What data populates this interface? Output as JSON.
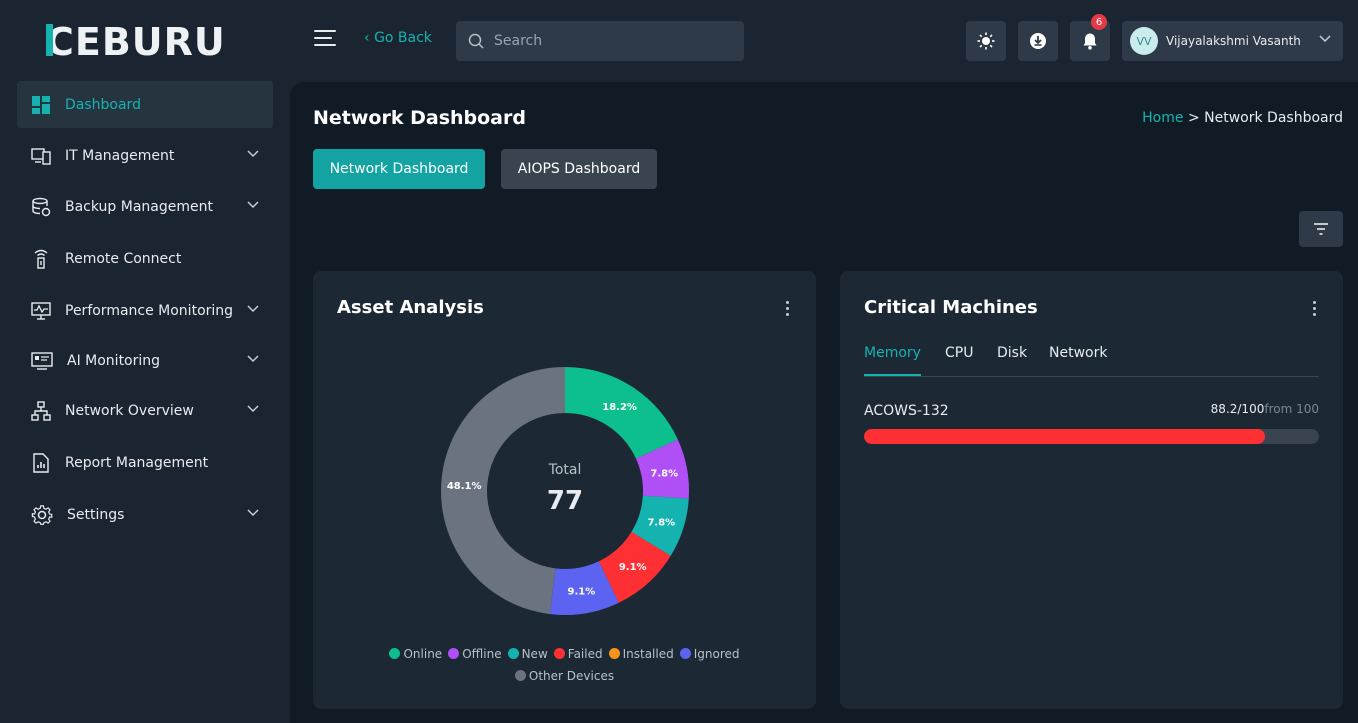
{
  "header": {
    "logo_text": "CEBURU",
    "go_back": "Go Back",
    "search_placeholder": "Search",
    "notification_count": "6",
    "user_initials": "VV",
    "user_name": "Vijayalakshmi Vasanth"
  },
  "sidebar": {
    "items": [
      {
        "label": "Dashboard",
        "icon": "dashboard-icon",
        "active": true
      },
      {
        "label": "IT Management",
        "icon": "it-management-icon",
        "has_children": true
      },
      {
        "label": "Backup Management",
        "icon": "backup-icon",
        "has_children": true
      },
      {
        "label": "Remote Connect",
        "icon": "remote-icon"
      },
      {
        "label": "Performance Monitoring",
        "icon": "monitor-icon",
        "has_children": true
      },
      {
        "label": "AI Monitoring",
        "icon": "ai-monitor-icon",
        "has_children": true
      },
      {
        "label": "Network Overview",
        "icon": "network-icon",
        "has_children": true
      },
      {
        "label": "Report Management",
        "icon": "report-icon"
      },
      {
        "label": "Settings",
        "icon": "gear-icon",
        "has_children": true
      }
    ]
  },
  "page": {
    "title": "Network Dashboard",
    "breadcrumb_home": "Home",
    "breadcrumb_sep": ">",
    "breadcrumb_current": "Network Dashboard",
    "tabs": [
      {
        "label": "Network Dashboard",
        "active": true
      },
      {
        "label": "AIOPS Dashboard",
        "active": false
      }
    ]
  },
  "asset_analysis": {
    "title": "Asset Analysis",
    "total_label": "Total",
    "total_value": "77"
  },
  "chart_data": {
    "type": "pie",
    "categories": [
      "Online",
      "Offline",
      "New",
      "Failed",
      "Installed",
      "Ignored",
      "Other Devices"
    ],
    "values": [
      18.2,
      7.8,
      7.8,
      9.1,
      0,
      9.1,
      48.1
    ],
    "labels": [
      "18.2%",
      "7.8%",
      "7.8%",
      "9.1%",
      "",
      "9.1%",
      "48.1%"
    ],
    "colors": [
      "#0dbf8c",
      "#b14ff7",
      "#14b3b0",
      "#ff3033",
      "#f7941d",
      "#5b63f0",
      "#6b7380"
    ],
    "donut": true,
    "legend": "bottom"
  },
  "critical_machines": {
    "title": "Critical Machines",
    "tabs": [
      "Memory",
      "CPU",
      "Disk",
      "Network"
    ],
    "active_tab": "Memory",
    "machines": [
      {
        "name": "ACOWS-132",
        "value": "88.2/100",
        "from": "from 100",
        "fraction": 0.882
      }
    ]
  },
  "colors": {
    "accent": "#14b3b0",
    "danger": "#ff3033"
  }
}
